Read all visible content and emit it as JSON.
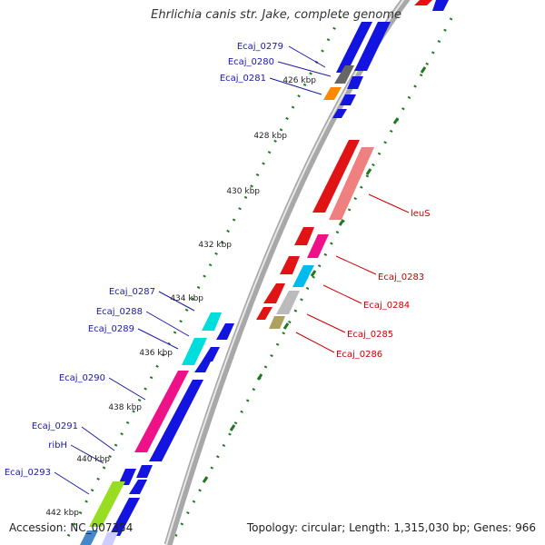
{
  "header": {
    "title": "Ehrlichia canis str. Jake, complete genome"
  },
  "footer": {
    "accession": "Accession: NC_007354",
    "summary": "Topology: circular; Length: 1,315,030 bp; Genes: 966"
  },
  "colors": {
    "backbone": "#8c8c8c",
    "tick_dots": "#1f7a1f",
    "label_left": "#1a1aa6",
    "label_right": "#cc0000",
    "forward_gene": "#1414e0",
    "reverse_gene": "#e01414"
  },
  "ruler": [
    {
      "label": "426 kbp"
    },
    {
      "label": "428 kbp"
    },
    {
      "label": "430 kbp"
    },
    {
      "label": "432 kbp"
    },
    {
      "label": "434 kbp"
    },
    {
      "label": "436 kbp"
    },
    {
      "label": "438 kbp"
    },
    {
      "label": "440 kbp"
    },
    {
      "label": "442 kbp"
    }
  ],
  "gene_labels_left": [
    {
      "name": "Ecaj_0279"
    },
    {
      "name": "Ecaj_0280"
    },
    {
      "name": "Ecaj_0281"
    },
    {
      "name": "Ecaj_0287"
    },
    {
      "name": "Ecaj_0288"
    },
    {
      "name": "Ecaj_0289"
    },
    {
      "name": "Ecaj_0290"
    },
    {
      "name": "Ecaj_0291"
    },
    {
      "name": "ribH"
    },
    {
      "name": "Ecaj_0293"
    }
  ],
  "gene_labels_right": [
    {
      "name": "leuS"
    },
    {
      "name": "Ecaj_0283"
    },
    {
      "name": "Ecaj_0284"
    },
    {
      "name": "Ecaj_0285"
    },
    {
      "name": "Ecaj_0286"
    }
  ]
}
